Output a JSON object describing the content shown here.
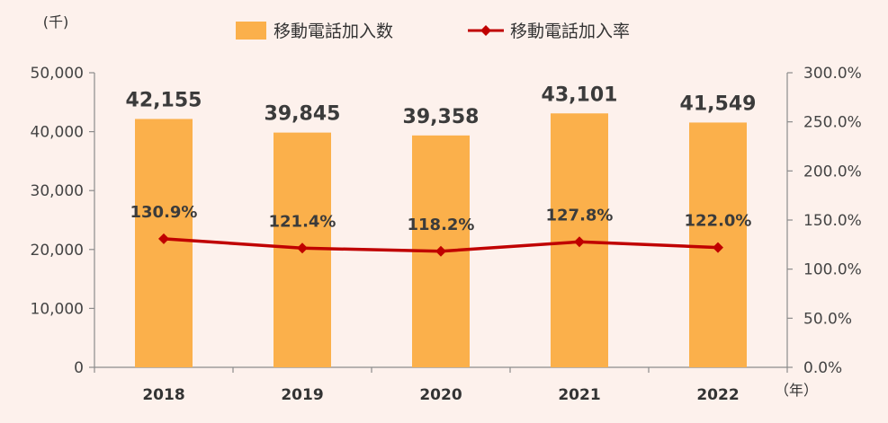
{
  "chart_data": {
    "type": "bar",
    "categories": [
      "2018",
      "2019",
      "2020",
      "2021",
      "2022"
    ],
    "series": [
      {
        "name": "移動電話加入数",
        "type": "bar",
        "axis": "left",
        "values": [
          42155,
          39845,
          39358,
          43101,
          41549
        ],
        "labels": [
          "42,155",
          "39,845",
          "39,358",
          "43,101",
          "41,549"
        ],
        "color": "#fbb04b"
      },
      {
        "name": "移動電話加入率",
        "type": "line",
        "axis": "right",
        "values": [
          130.9,
          121.4,
          118.2,
          127.8,
          122.0
        ],
        "labels": [
          "130.9%",
          "121.4%",
          "118.2%",
          "127.8%",
          "122.0%"
        ],
        "color": "#c00000"
      }
    ],
    "y_left": {
      "unit_label": "(千)",
      "ylim": [
        0,
        50000
      ],
      "ticks": [
        0,
        10000,
        20000,
        30000,
        40000,
        50000
      ],
      "tick_labels": [
        "0",
        "10,000",
        "20,000",
        "30,000",
        "40,000",
        "50,000"
      ]
    },
    "y_right": {
      "ylim": [
        0,
        300
      ],
      "ticks": [
        0,
        50,
        100,
        150,
        200,
        250,
        300
      ],
      "tick_labels": [
        "0.0%",
        "50.0%",
        "100.0%",
        "150.0%",
        "200.0%",
        "250.0%",
        "300.0%"
      ]
    },
    "x_unit_label": "（年）",
    "legend_position": "top",
    "grid": false,
    "colors": {
      "background": "#fdf1ec",
      "axis": "#8c8c8c"
    }
  }
}
